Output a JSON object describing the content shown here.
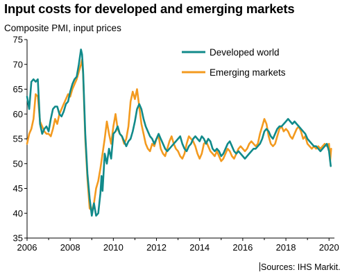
{
  "header": {
    "title": "Input costs for developed and emerging markets",
    "subtitle": "Composite  PMI, input prices"
  },
  "footer": {
    "source": "Sources: IHS Markit."
  },
  "chart_data": {
    "type": "line",
    "title": "Input costs for developed and emerging markets",
    "ylabel": "Composite  PMI, input prices",
    "xlabel": "",
    "xlim": [
      2006,
      2020.25
    ],
    "ylim": [
      35,
      75
    ],
    "yticks": [
      35,
      40,
      45,
      50,
      55,
      60,
      65,
      70,
      75
    ],
    "xticks": [
      2006,
      2008,
      2010,
      2012,
      2014,
      2016,
      2018,
      2020
    ],
    "grid": false,
    "legend_position": "top-right",
    "colors": {
      "developed": "#118a8a",
      "emerging": "#f39a1f"
    },
    "series": [
      {
        "name": "Developed world",
        "color": "#118a8a",
        "points": [
          [
            2006.0,
            63.5
          ],
          [
            2006.1,
            61.0
          ],
          [
            2006.2,
            66.5
          ],
          [
            2006.3,
            67.0
          ],
          [
            2006.4,
            66.5
          ],
          [
            2006.5,
            67.0
          ],
          [
            2006.6,
            58.0
          ],
          [
            2006.7,
            56.0
          ],
          [
            2006.8,
            57.0
          ],
          [
            2006.9,
            57.5
          ],
          [
            2007.0,
            56.5
          ],
          [
            2007.1,
            59.0
          ],
          [
            2007.2,
            61.0
          ],
          [
            2007.3,
            61.5
          ],
          [
            2007.4,
            61.5
          ],
          [
            2007.5,
            60.0
          ],
          [
            2007.6,
            59.5
          ],
          [
            2007.7,
            60.5
          ],
          [
            2007.8,
            62.0
          ],
          [
            2007.9,
            62.5
          ],
          [
            2008.0,
            64.5
          ],
          [
            2008.1,
            66.0
          ],
          [
            2008.2,
            67.0
          ],
          [
            2008.3,
            67.5
          ],
          [
            2008.4,
            70.0
          ],
          [
            2008.5,
            73.0
          ],
          [
            2008.55,
            72.0
          ],
          [
            2008.6,
            68.5
          ],
          [
            2008.7,
            56.0
          ],
          [
            2008.8,
            48.0
          ],
          [
            2008.9,
            43.0
          ],
          [
            2009.0,
            39.5
          ],
          [
            2009.1,
            42.0
          ],
          [
            2009.2,
            39.5
          ],
          [
            2009.3,
            40.0
          ],
          [
            2009.4,
            44.0
          ],
          [
            2009.45,
            47.5
          ],
          [
            2009.5,
            44.5
          ],
          [
            2009.6,
            52.0
          ],
          [
            2009.7,
            50.0
          ],
          [
            2009.8,
            53.0
          ],
          [
            2009.9,
            51.0
          ],
          [
            2010.0,
            56.0
          ],
          [
            2010.1,
            56.5
          ],
          [
            2010.2,
            57.5
          ],
          [
            2010.3,
            56.0
          ],
          [
            2010.4,
            55.5
          ],
          [
            2010.5,
            54.5
          ],
          [
            2010.6,
            53.5
          ],
          [
            2010.7,
            54.5
          ],
          [
            2010.8,
            55.0
          ],
          [
            2010.9,
            56.5
          ],
          [
            2011.0,
            58.5
          ],
          [
            2011.1,
            61.0
          ],
          [
            2011.2,
            62.0
          ],
          [
            2011.3,
            61.0
          ],
          [
            2011.4,
            59.0
          ],
          [
            2011.5,
            57.5
          ],
          [
            2011.6,
            56.5
          ],
          [
            2011.7,
            55.5
          ],
          [
            2011.8,
            55.0
          ],
          [
            2011.9,
            54.0
          ],
          [
            2012.0,
            55.0
          ],
          [
            2012.1,
            56.0
          ],
          [
            2012.2,
            55.0
          ],
          [
            2012.3,
            54.0
          ],
          [
            2012.4,
            53.0
          ],
          [
            2012.5,
            52.5
          ],
          [
            2012.6,
            53.0
          ],
          [
            2012.7,
            53.5
          ],
          [
            2012.8,
            54.0
          ],
          [
            2012.9,
            54.5
          ],
          [
            2013.0,
            55.0
          ],
          [
            2013.1,
            55.5
          ],
          [
            2013.2,
            54.0
          ],
          [
            2013.3,
            53.0
          ],
          [
            2013.4,
            52.5
          ],
          [
            2013.5,
            53.5
          ],
          [
            2013.6,
            54.0
          ],
          [
            2013.7,
            55.0
          ],
          [
            2013.8,
            55.5
          ],
          [
            2013.9,
            55.0
          ],
          [
            2014.0,
            54.5
          ],
          [
            2014.1,
            55.5
          ],
          [
            2014.2,
            55.0
          ],
          [
            2014.3,
            54.0
          ],
          [
            2014.4,
            55.0
          ],
          [
            2014.5,
            54.5
          ],
          [
            2014.6,
            53.0
          ],
          [
            2014.7,
            52.5
          ],
          [
            2014.8,
            53.0
          ],
          [
            2014.9,
            52.5
          ],
          [
            2015.0,
            51.5
          ],
          [
            2015.1,
            52.0
          ],
          [
            2015.2,
            53.0
          ],
          [
            2015.3,
            54.0
          ],
          [
            2015.4,
            54.5
          ],
          [
            2015.5,
            53.5
          ],
          [
            2015.6,
            52.5
          ],
          [
            2015.7,
            52.0
          ],
          [
            2015.8,
            52.5
          ],
          [
            2015.9,
            52.0
          ],
          [
            2016.0,
            51.5
          ],
          [
            2016.1,
            51.0
          ],
          [
            2016.2,
            51.5
          ],
          [
            2016.3,
            52.0
          ],
          [
            2016.4,
            52.5
          ],
          [
            2016.5,
            53.0
          ],
          [
            2016.6,
            53.0
          ],
          [
            2016.7,
            53.5
          ],
          [
            2016.8,
            54.0
          ],
          [
            2016.9,
            55.0
          ],
          [
            2017.0,
            56.5
          ],
          [
            2017.1,
            57.0
          ],
          [
            2017.2,
            56.5
          ],
          [
            2017.3,
            55.5
          ],
          [
            2017.4,
            55.0
          ],
          [
            2017.5,
            56.0
          ],
          [
            2017.6,
            57.0
          ],
          [
            2017.7,
            57.5
          ],
          [
            2017.8,
            57.5
          ],
          [
            2017.9,
            58.0
          ],
          [
            2018.0,
            58.5
          ],
          [
            2018.1,
            59.0
          ],
          [
            2018.2,
            58.5
          ],
          [
            2018.3,
            58.0
          ],
          [
            2018.4,
            58.5
          ],
          [
            2018.5,
            58.0
          ],
          [
            2018.6,
            57.5
          ],
          [
            2018.7,
            57.0
          ],
          [
            2018.8,
            56.5
          ],
          [
            2018.9,
            56.0
          ],
          [
            2019.0,
            55.0
          ],
          [
            2019.1,
            54.5
          ],
          [
            2019.2,
            54.0
          ],
          [
            2019.3,
            53.5
          ],
          [
            2019.4,
            53.5
          ],
          [
            2019.5,
            53.0
          ],
          [
            2019.6,
            52.5
          ],
          [
            2019.7,
            53.0
          ],
          [
            2019.8,
            53.5
          ],
          [
            2019.9,
            54.0
          ],
          [
            2020.0,
            52.5
          ],
          [
            2020.08,
            49.5
          ]
        ]
      },
      {
        "name": "Emerging  markets",
        "color": "#f39a1f",
        "points": [
          [
            2006.0,
            54.0
          ],
          [
            2006.1,
            56.0
          ],
          [
            2006.2,
            57.0
          ],
          [
            2006.3,
            59.0
          ],
          [
            2006.4,
            64.0
          ],
          [
            2006.5,
            63.5
          ],
          [
            2006.6,
            58.5
          ],
          [
            2006.7,
            57.5
          ],
          [
            2006.8,
            56.5
          ],
          [
            2006.9,
            56.0
          ],
          [
            2007.0,
            56.0
          ],
          [
            2007.1,
            55.5
          ],
          [
            2007.2,
            57.0
          ],
          [
            2007.3,
            59.0
          ],
          [
            2007.4,
            58.0
          ],
          [
            2007.5,
            60.0
          ],
          [
            2007.6,
            61.0
          ],
          [
            2007.7,
            62.0
          ],
          [
            2007.8,
            63.0
          ],
          [
            2007.9,
            64.0
          ],
          [
            2008.0,
            63.5
          ],
          [
            2008.1,
            65.0
          ],
          [
            2008.2,
            66.0
          ],
          [
            2008.3,
            67.0
          ],
          [
            2008.4,
            68.5
          ],
          [
            2008.5,
            70.0
          ],
          [
            2008.55,
            71.0
          ],
          [
            2008.6,
            68.0
          ],
          [
            2008.7,
            55.0
          ],
          [
            2008.8,
            47.0
          ],
          [
            2008.9,
            41.0
          ],
          [
            2009.0,
            40.5
          ],
          [
            2009.1,
            42.0
          ],
          [
            2009.2,
            45.0
          ],
          [
            2009.3,
            46.5
          ],
          [
            2009.4,
            49.0
          ],
          [
            2009.5,
            52.0
          ],
          [
            2009.6,
            55.0
          ],
          [
            2009.7,
            58.5
          ],
          [
            2009.8,
            56.0
          ],
          [
            2009.9,
            54.0
          ],
          [
            2010.0,
            57.5
          ],
          [
            2010.1,
            60.0
          ],
          [
            2010.2,
            57.0
          ],
          [
            2010.3,
            56.0
          ],
          [
            2010.4,
            55.5
          ],
          [
            2010.5,
            54.0
          ],
          [
            2010.6,
            55.0
          ],
          [
            2010.7,
            57.5
          ],
          [
            2010.8,
            62.5
          ],
          [
            2010.9,
            64.5
          ],
          [
            2011.0,
            63.0
          ],
          [
            2011.1,
            65.0
          ],
          [
            2011.2,
            61.5
          ],
          [
            2011.3,
            58.0
          ],
          [
            2011.4,
            56.0
          ],
          [
            2011.5,
            54.0
          ],
          [
            2011.6,
            53.0
          ],
          [
            2011.7,
            52.5
          ],
          [
            2011.8,
            54.0
          ],
          [
            2011.9,
            53.5
          ],
          [
            2012.0,
            55.0
          ],
          [
            2012.1,
            55.5
          ],
          [
            2012.2,
            53.0
          ],
          [
            2012.3,
            52.0
          ],
          [
            2012.4,
            51.5
          ],
          [
            2012.5,
            53.0
          ],
          [
            2012.6,
            54.5
          ],
          [
            2012.7,
            55.5
          ],
          [
            2012.8,
            54.0
          ],
          [
            2012.9,
            53.0
          ],
          [
            2013.0,
            52.5
          ],
          [
            2013.1,
            51.5
          ],
          [
            2013.2,
            51.0
          ],
          [
            2013.3,
            52.0
          ],
          [
            2013.4,
            54.0
          ],
          [
            2013.5,
            55.5
          ],
          [
            2013.6,
            55.0
          ],
          [
            2013.7,
            54.5
          ],
          [
            2013.8,
            53.5
          ],
          [
            2013.9,
            52.0
          ],
          [
            2014.0,
            51.0
          ],
          [
            2014.1,
            52.0
          ],
          [
            2014.2,
            54.0
          ],
          [
            2014.3,
            54.5
          ],
          [
            2014.4,
            53.5
          ],
          [
            2014.5,
            52.5
          ],
          [
            2014.6,
            52.0
          ],
          [
            2014.7,
            51.5
          ],
          [
            2014.8,
            52.5
          ],
          [
            2014.9,
            51.5
          ],
          [
            2015.0,
            50.5
          ],
          [
            2015.1,
            51.0
          ],
          [
            2015.2,
            52.0
          ],
          [
            2015.3,
            53.0
          ],
          [
            2015.4,
            52.5
          ],
          [
            2015.5,
            51.5
          ],
          [
            2015.6,
            51.0
          ],
          [
            2015.7,
            52.0
          ],
          [
            2015.8,
            53.0
          ],
          [
            2015.9,
            53.5
          ],
          [
            2016.0,
            53.0
          ],
          [
            2016.1,
            52.5
          ],
          [
            2016.2,
            53.0
          ],
          [
            2016.3,
            54.0
          ],
          [
            2016.4,
            54.5
          ],
          [
            2016.5,
            54.0
          ],
          [
            2016.6,
            53.5
          ],
          [
            2016.7,
            54.0
          ],
          [
            2016.8,
            56.0
          ],
          [
            2016.9,
            57.5
          ],
          [
            2017.0,
            59.0
          ],
          [
            2017.1,
            58.0
          ],
          [
            2017.2,
            55.5
          ],
          [
            2017.3,
            54.0
          ],
          [
            2017.4,
            53.5
          ],
          [
            2017.5,
            54.0
          ],
          [
            2017.6,
            55.5
          ],
          [
            2017.7,
            57.0
          ],
          [
            2017.8,
            57.5
          ],
          [
            2017.9,
            56.5
          ],
          [
            2018.0,
            57.0
          ],
          [
            2018.1,
            56.5
          ],
          [
            2018.2,
            55.5
          ],
          [
            2018.3,
            55.0
          ],
          [
            2018.4,
            56.0
          ],
          [
            2018.5,
            57.0
          ],
          [
            2018.6,
            57.5
          ],
          [
            2018.7,
            56.5
          ],
          [
            2018.8,
            55.0
          ],
          [
            2018.9,
            55.5
          ],
          [
            2019.0,
            54.0
          ],
          [
            2019.1,
            53.5
          ],
          [
            2019.2,
            53.0
          ],
          [
            2019.3,
            53.5
          ],
          [
            2019.4,
            53.0
          ],
          [
            2019.5,
            53.5
          ],
          [
            2019.6,
            53.0
          ],
          [
            2019.7,
            53.5
          ],
          [
            2019.8,
            54.0
          ],
          [
            2019.9,
            53.5
          ],
          [
            2020.0,
            54.0
          ],
          [
            2020.05,
            50.5
          ],
          [
            2020.1,
            53.0
          ]
        ]
      }
    ]
  }
}
